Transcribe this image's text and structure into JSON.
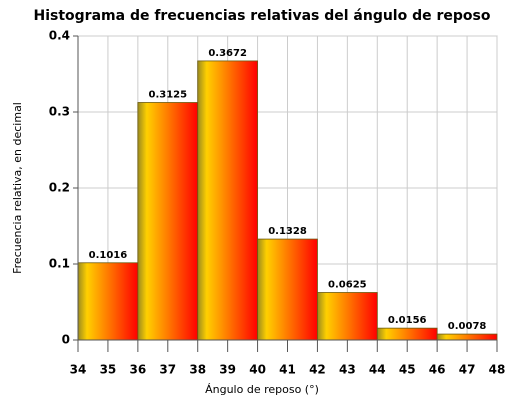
{
  "chart_data": {
    "type": "histogram",
    "title": "Histograma de frecuencias relativas del ángulo de reposo",
    "xlabel": "Ángulo de reposo (°)",
    "ylabel": "Frecuencia relativa, en decimal",
    "bins": [
      34,
      36,
      38,
      40,
      42,
      44,
      46,
      48
    ],
    "values": [
      0.1016,
      0.3125,
      0.3672,
      0.1328,
      0.0625,
      0.0156,
      0.0078
    ],
    "colors": [
      "#ffd000",
      "#ff0000"
    ],
    "xlim": [
      34,
      48
    ],
    "xticks": [
      34,
      35,
      36,
      37,
      38,
      39,
      40,
      41,
      42,
      43,
      44,
      45,
      46,
      47,
      48
    ],
    "ylim": [
      0,
      0.4
    ],
    "yticks": [
      0,
      0.1,
      0.2,
      0.3,
      0.4
    ],
    "grid": true
  }
}
